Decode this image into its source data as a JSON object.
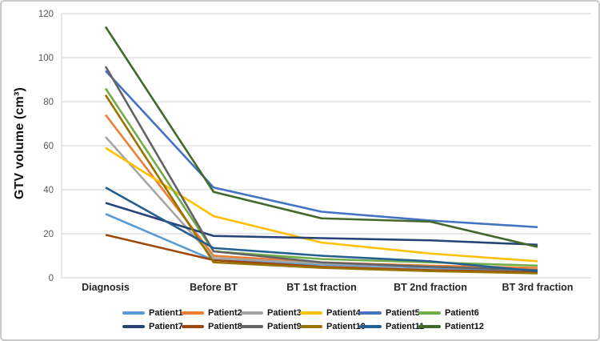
{
  "figure": {
    "background": "#ffffff",
    "border_color": "#c9c9c9"
  },
  "chart_data": {
    "type": "line",
    "title": "",
    "xlabel": "",
    "ylabel": "GTV volume (cm³)",
    "categories": [
      "Diagnosis",
      "Before BT",
      "BT 1st fraction",
      "BT 2nd fraction",
      "BT 3rd fraction"
    ],
    "yticks": [
      0,
      20,
      40,
      60,
      80,
      100,
      120
    ],
    "ylim": [
      0,
      120
    ],
    "grid": "horizontal",
    "gridline_color": "#d9d9d9",
    "axis_line_color": "#d9d9d9",
    "ytick_text_color": "#595959",
    "category_text_color": "#262626",
    "legend_position": "bottom",
    "legend_rows": 2,
    "series": [
      {
        "name": "Patient1",
        "color": "#5B9BD5",
        "values": [
          29,
          8,
          6,
          4.5,
          3
        ]
      },
      {
        "name": "Patient2",
        "color": "#ED7D31",
        "values": [
          74,
          10,
          7,
          5.5,
          4.5
        ]
      },
      {
        "name": "Patient3",
        "color": "#A5A5A5",
        "values": [
          64,
          9,
          6.5,
          5,
          3.5
        ]
      },
      {
        "name": "Patient4",
        "color": "#FFC000",
        "values": [
          59,
          28,
          16,
          11,
          7.5
        ]
      },
      {
        "name": "Patient5",
        "color": "#4472C4",
        "values": [
          94,
          41,
          30,
          26,
          23
        ]
      },
      {
        "name": "Patient6",
        "color": "#70AD47",
        "values": [
          86,
          12,
          8.5,
          7,
          5.5
        ]
      },
      {
        "name": "Patient7",
        "color": "#264478",
        "values": [
          34,
          19,
          18,
          17,
          15
        ]
      },
      {
        "name": "Patient8",
        "color": "#9E480E",
        "values": [
          19.5,
          8,
          5,
          3.5,
          2.5
        ]
      },
      {
        "name": "Patient9",
        "color": "#636363",
        "values": [
          96,
          12,
          7,
          5,
          3.5
        ]
      },
      {
        "name": "Patient10",
        "color": "#997300",
        "values": [
          83,
          7,
          4.5,
          3,
          2
        ]
      },
      {
        "name": "Patient11",
        "color": "#255E91",
        "values": [
          41,
          13.5,
          10,
          7.5,
          3
        ]
      },
      {
        "name": "Patient12",
        "color": "#43682B",
        "values": [
          114,
          39,
          27,
          25.5,
          14
        ]
      }
    ]
  }
}
